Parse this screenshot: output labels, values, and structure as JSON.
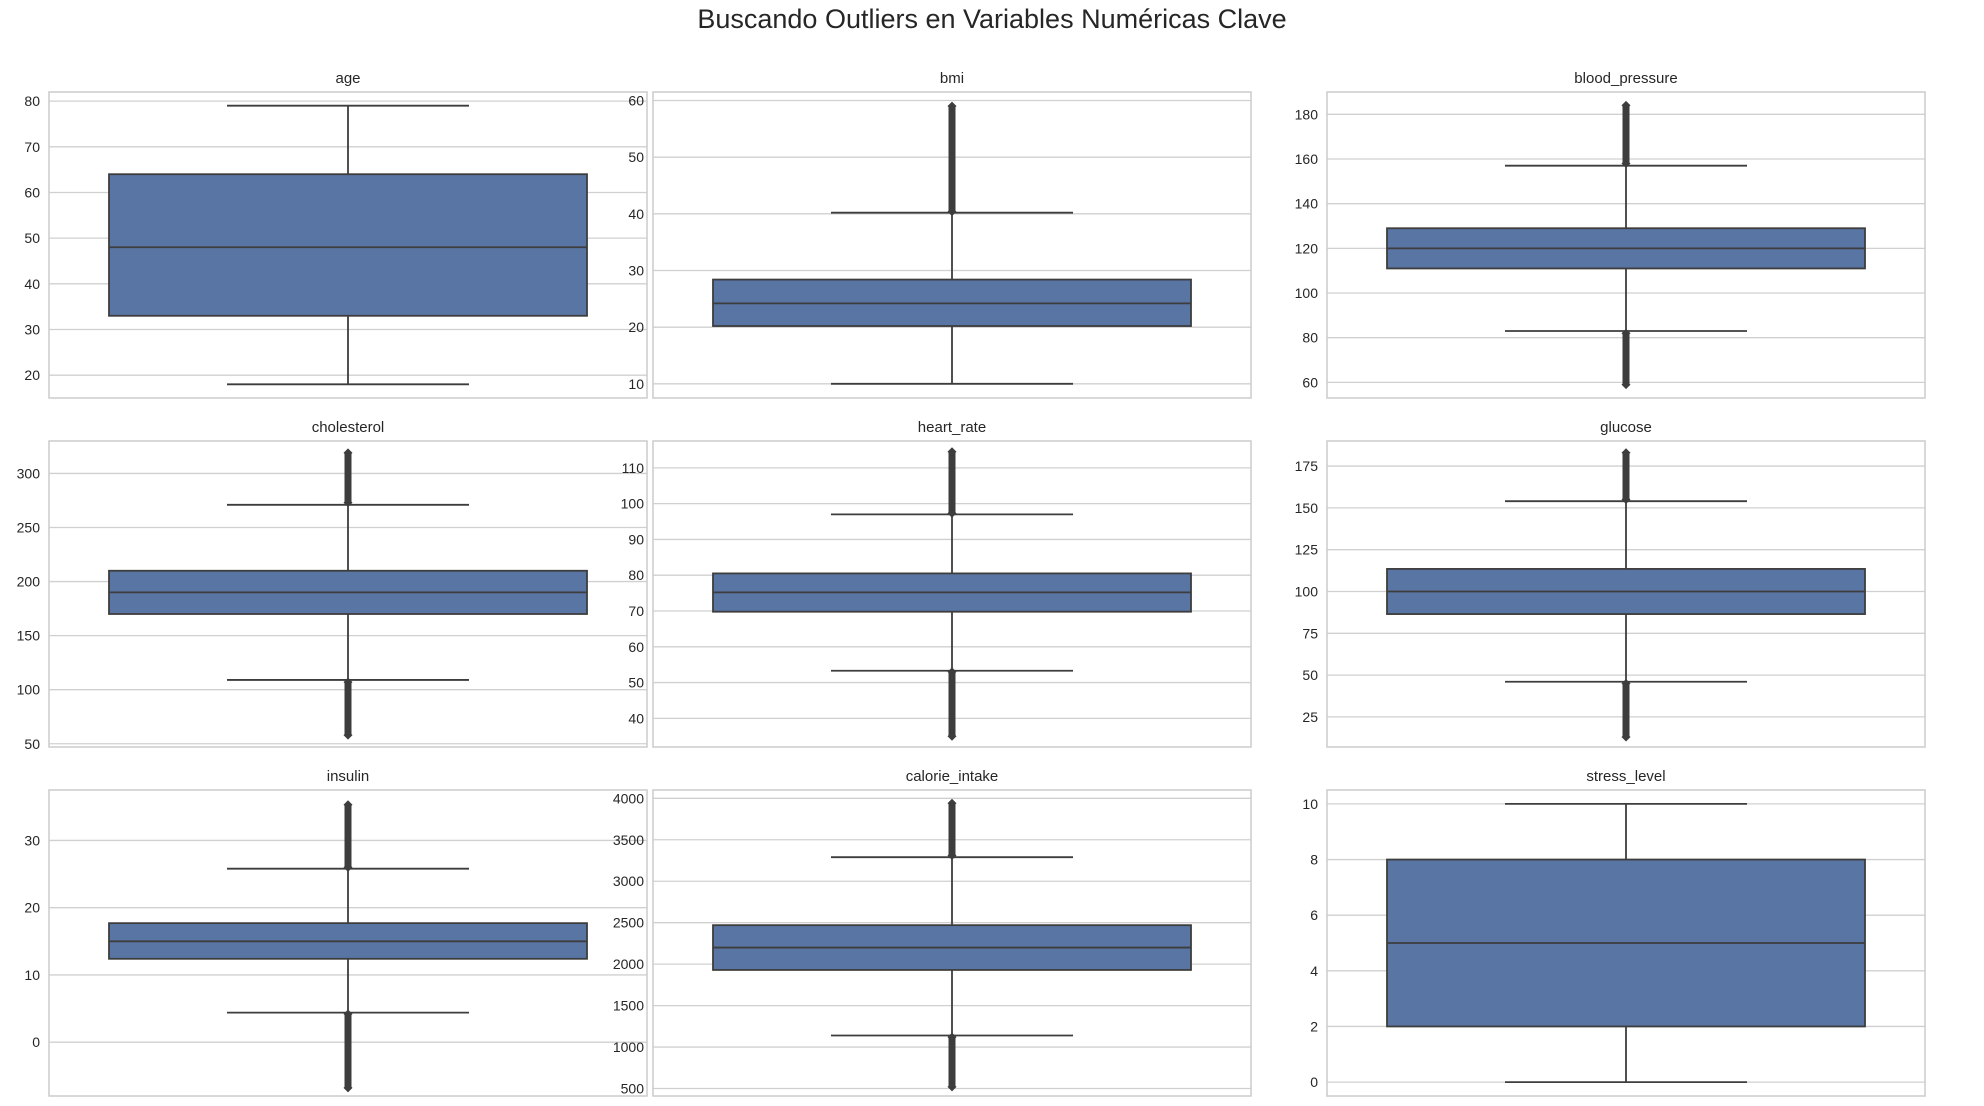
{
  "figure": {
    "title": "Buscando Outliers en Variables Numéricas Clave"
  },
  "colors": {
    "box_fill": "#5875a4",
    "line": "#3d3d3d",
    "grid": "#d0d0d0",
    "frame": "#cccccc",
    "tick_text": "#262626"
  },
  "chart_data": [
    {
      "type": "box",
      "title": "age",
      "ylim": [
        15,
        82
      ],
      "yticks": [
        20,
        30,
        40,
        50,
        60,
        70,
        80
      ],
      "grid": true,
      "box": {
        "q1": 33,
        "median": 48,
        "q3": 64,
        "whisker_low": 18,
        "whisker_high": 79
      },
      "outliers_low": null,
      "outliers_high": null
    },
    {
      "type": "box",
      "title": "bmi",
      "ylim": [
        7.5,
        61.5
      ],
      "yticks": [
        10,
        20,
        30,
        40,
        50,
        60
      ],
      "grid": true,
      "box": {
        "q1": 20.2,
        "median": 24.2,
        "q3": 28.4,
        "whisker_low": 10,
        "whisker_high": 40.2
      },
      "outliers_low": null,
      "outliers_high": [
        40.4,
        59
      ]
    },
    {
      "type": "box",
      "title": "blood_pressure",
      "ylim": [
        53,
        190
      ],
      "yticks": [
        60,
        80,
        100,
        120,
        140,
        160,
        180
      ],
      "grid": true,
      "box": {
        "q1": 111,
        "median": 120,
        "q3": 129,
        "whisker_low": 83,
        "whisker_high": 157
      },
      "outliers_low": [
        59,
        82
      ],
      "outliers_high": [
        158,
        184
      ]
    },
    {
      "type": "box",
      "title": "cholesterol",
      "ylim": [
        47,
        330
      ],
      "yticks": [
        50,
        100,
        150,
        200,
        250,
        300
      ],
      "grid": true,
      "box": {
        "q1": 170,
        "median": 190,
        "q3": 210,
        "whisker_low": 109,
        "whisker_high": 271
      },
      "outliers_low": [
        58,
        107
      ],
      "outliers_high": [
        273,
        319
      ]
    },
    {
      "type": "box",
      "title": "heart_rate",
      "ylim": [
        32,
        117.5
      ],
      "yticks": [
        40,
        50,
        60,
        70,
        80,
        90,
        100,
        110
      ],
      "grid": true,
      "box": {
        "q1": 69.8,
        "median": 75.2,
        "q3": 80.5,
        "whisker_low": 53.3,
        "whisker_high": 97
      },
      "outliers_low": [
        35,
        53
      ],
      "outliers_high": [
        97.3,
        114.5
      ]
    },
    {
      "type": "box",
      "title": "glucose",
      "ylim": [
        7,
        190
      ],
      "yticks": [
        25,
        50,
        75,
        100,
        125,
        150,
        175
      ],
      "grid": true,
      "box": {
        "q1": 86.5,
        "median": 100,
        "q3": 113.5,
        "whisker_low": 46,
        "whisker_high": 154
      },
      "outliers_low": [
        13,
        45
      ],
      "outliers_high": [
        155,
        183
      ]
    },
    {
      "type": "box",
      "title": "insulin",
      "ylim": [
        -8,
        37.5
      ],
      "yticks": [
        0,
        10,
        20,
        30
      ],
      "grid": true,
      "box": {
        "q1": 12.4,
        "median": 15,
        "q3": 17.7,
        "whisker_low": 4.4,
        "whisker_high": 25.8
      },
      "outliers_low": [
        -6.8,
        4.2
      ],
      "outliers_high": [
        26,
        35.3
      ]
    },
    {
      "type": "box",
      "title": "calorie_intake",
      "ylim": [
        410,
        4100
      ],
      "yticks": [
        500,
        1000,
        1500,
        2000,
        2500,
        3000,
        3500,
        4000
      ],
      "grid": true,
      "box": {
        "q1": 1930,
        "median": 2200,
        "q3": 2470,
        "whisker_low": 1140,
        "whisker_high": 3290
      },
      "outliers_low": [
        520,
        1120
      ],
      "outliers_high": [
        3310,
        3940
      ]
    },
    {
      "type": "box",
      "title": "stress_level",
      "ylim": [
        -0.5,
        10.5
      ],
      "yticks": [
        0,
        2,
        4,
        6,
        8,
        10
      ],
      "grid": true,
      "box": {
        "q1": 2,
        "median": 5,
        "q3": 8,
        "whisker_low": 0,
        "whisker_high": 10
      },
      "outliers_low": null,
      "outliers_high": null
    }
  ]
}
